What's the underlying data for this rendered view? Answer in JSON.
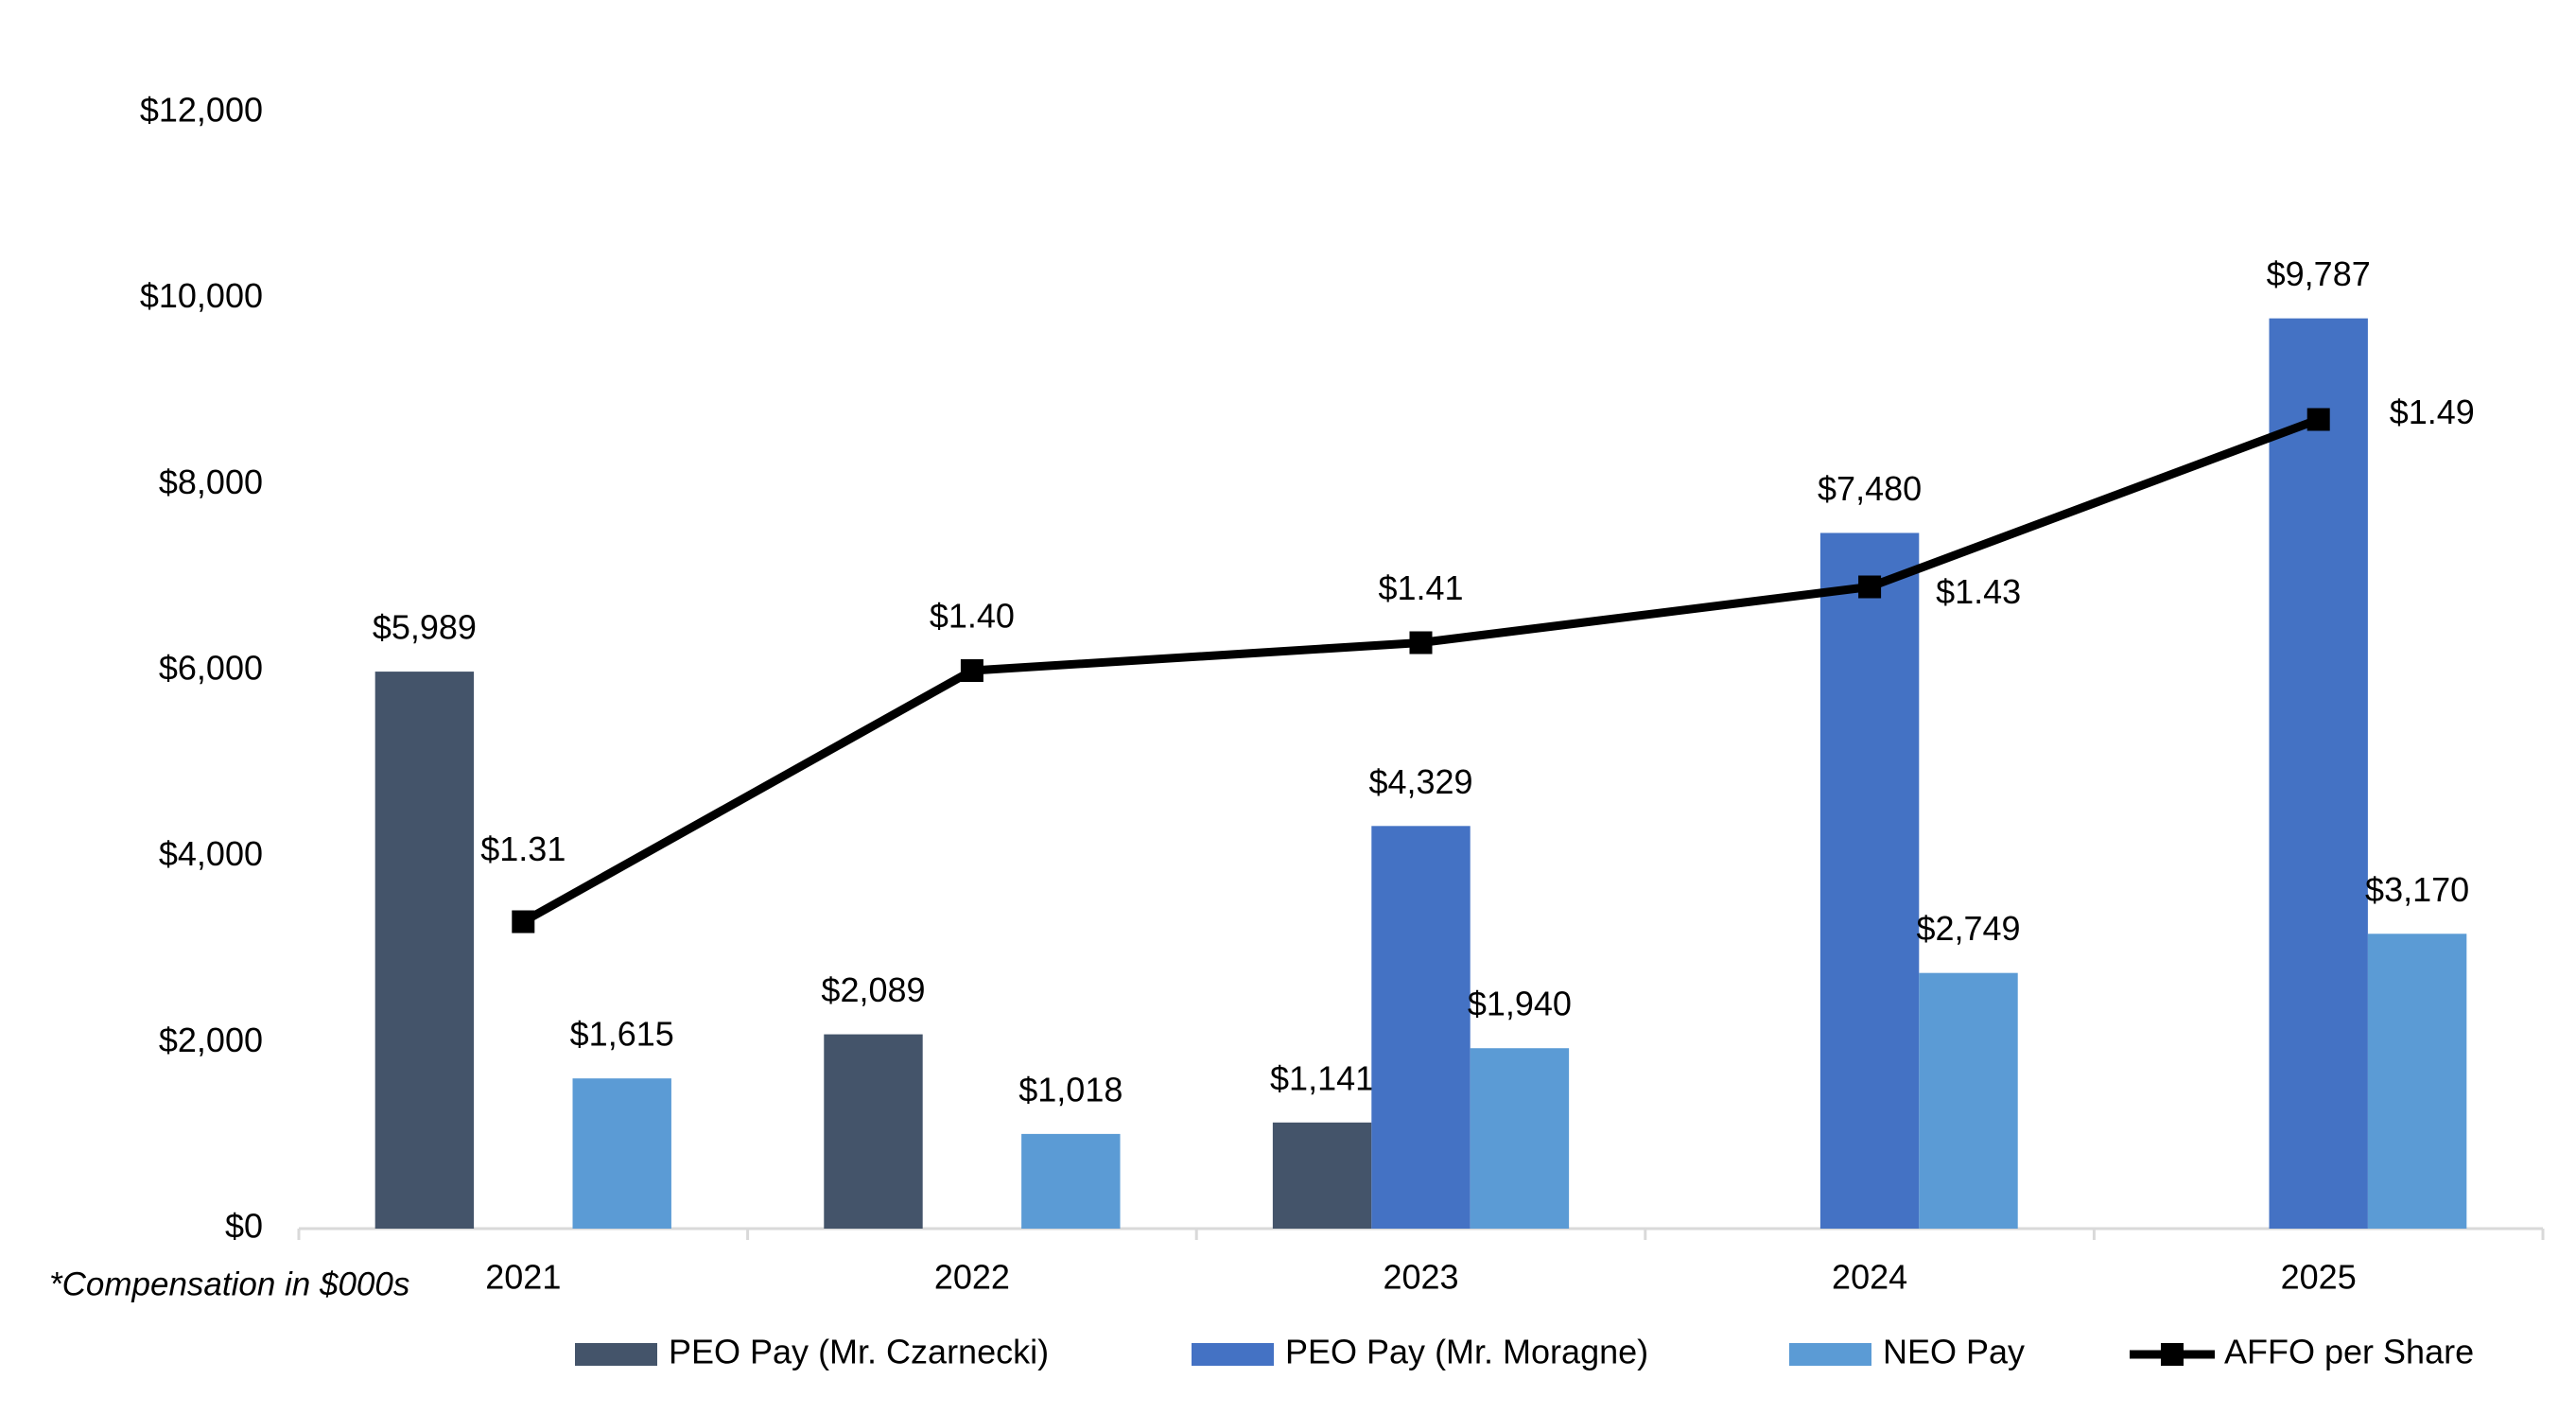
{
  "chart_data": {
    "type": "bar",
    "categories": [
      "2021",
      "2022",
      "2023",
      "2024",
      "2025"
    ],
    "series": [
      {
        "name": "PEO Pay (Mr. Czarnecki)",
        "color": "#44546a",
        "values": [
          5989,
          2089,
          1141,
          null,
          null
        ],
        "value_labels": [
          "$5,989",
          "$2,089",
          "$1,141",
          null,
          null
        ]
      },
      {
        "name": "PEO Pay (Mr. Moragne)",
        "color": "#4472c4",
        "values": [
          null,
          null,
          4329,
          7480,
          9787
        ],
        "value_labels": [
          null,
          null,
          "$4,329",
          "$7,480",
          "$9,787"
        ]
      },
      {
        "name": "NEO Pay",
        "color": "#5b9bd5",
        "values": [
          1615,
          1018,
          1940,
          2749,
          3170
        ],
        "value_labels": [
          "$1,615",
          "$1,018",
          "$1,940",
          "$2,749",
          "$3,170"
        ]
      },
      {
        "name": "AFFO per Share",
        "color": "#000000",
        "type": "line",
        "axis": "y2",
        "values": [
          1.31,
          1.4,
          1.41,
          1.43,
          1.49
        ],
        "value_labels": [
          "$1.31",
          "$1.40",
          "$1.41",
          "$1.43",
          "$1.49"
        ]
      }
    ],
    "ylim": [
      0,
      12000
    ],
    "yticks": [
      {
        "value": 0,
        "label": "$0"
      },
      {
        "value": 2000,
        "label": "$2,000"
      },
      {
        "value": 4000,
        "label": "$4,000"
      },
      {
        "value": 6000,
        "label": "$6,000"
      },
      {
        "value": 8000,
        "label": "$8,000"
      },
      {
        "value": 10000,
        "label": "$10,000"
      },
      {
        "value": 12000,
        "label": "$12,000"
      }
    ],
    "y2lim": [
      1.2,
      1.6
    ],
    "footnote": "*Compensation in $000s",
    "grid": false,
    "legend": "bottom"
  }
}
